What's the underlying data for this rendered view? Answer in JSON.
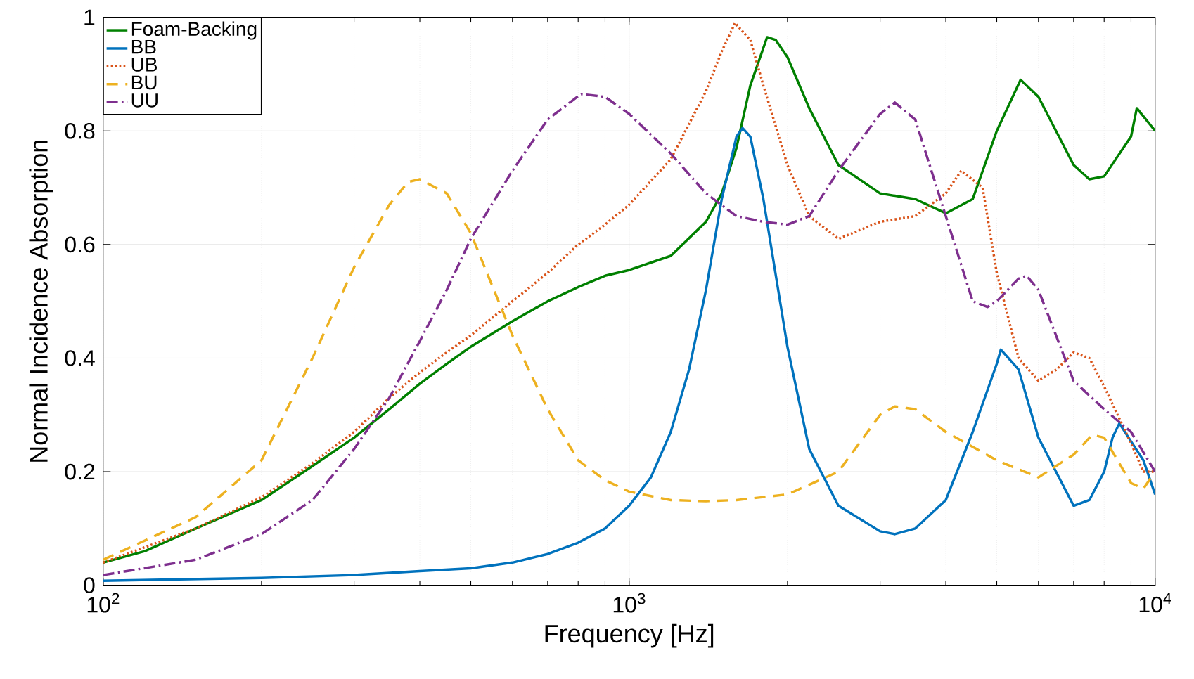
{
  "chart_data": {
    "type": "line",
    "xlabel": "Frequency [Hz]",
    "ylabel": "Normal Incidence Absorption",
    "log": "x",
    "grid": true,
    "legend": "top left",
    "xlim": [
      100,
      10000
    ],
    "ylim": [
      0,
      1
    ],
    "xticks": [
      {
        "value": 100,
        "label": "10$^{2}$"
      },
      {
        "value": 1000,
        "label": "10$^{3}$"
      },
      {
        "value": 10000,
        "label": "10$^{4}$"
      }
    ],
    "yticks": [
      0,
      0.2,
      0.4,
      0.6,
      0.8,
      1
    ],
    "series": [
      {
        "name": "Foam-Backing",
        "color": "#008000",
        "line_style": "solid",
        "x": [
          100,
          120,
          150,
          200,
          250,
          300,
          350,
          400,
          450,
          500,
          600,
          700,
          800,
          900,
          1000,
          1200,
          1400,
          1500,
          1600,
          1700,
          1830,
          1900,
          2000,
          2200,
          2500,
          3000,
          3500,
          4000,
          4500,
          5000,
          5550,
          6000,
          7000,
          7500,
          8000,
          9000,
          9230,
          10000
        ],
        "values": [
          0.04,
          0.06,
          0.1,
          0.15,
          0.21,
          0.26,
          0.31,
          0.355,
          0.39,
          0.42,
          0.465,
          0.5,
          0.525,
          0.545,
          0.555,
          0.58,
          0.64,
          0.69,
          0.77,
          0.88,
          0.965,
          0.96,
          0.93,
          0.84,
          0.74,
          0.69,
          0.68,
          0.655,
          0.68,
          0.8,
          0.89,
          0.86,
          0.74,
          0.715,
          0.72,
          0.79,
          0.84,
          0.8
        ]
      },
      {
        "name": "BB",
        "color": "#0072bd",
        "line_style": "solid",
        "x": [
          100,
          200,
          300,
          400,
          500,
          600,
          700,
          800,
          900,
          1000,
          1100,
          1200,
          1300,
          1400,
          1500,
          1600,
          1643,
          1700,
          1800,
          2000,
          2200,
          2500,
          3000,
          3200,
          3500,
          4000,
          4500,
          5000,
          5090,
          5500,
          6000,
          7000,
          7500,
          8000,
          8300,
          8550,
          9500,
          10000
        ],
        "values": [
          0.008,
          0.013,
          0.018,
          0.025,
          0.03,
          0.04,
          0.055,
          0.075,
          0.1,
          0.14,
          0.19,
          0.27,
          0.38,
          0.52,
          0.68,
          0.79,
          0.805,
          0.79,
          0.68,
          0.42,
          0.24,
          0.14,
          0.095,
          0.09,
          0.1,
          0.15,
          0.27,
          0.39,
          0.415,
          0.38,
          0.26,
          0.14,
          0.15,
          0.2,
          0.26,
          0.285,
          0.22,
          0.16
        ]
      },
      {
        "name": "UB",
        "color": "#d95319",
        "line_style": "dotted",
        "x": [
          100,
          150,
          200,
          250,
          300,
          350,
          400,
          450,
          500,
          600,
          700,
          800,
          900,
          1000,
          1200,
          1400,
          1500,
          1590,
          1700,
          1800,
          2000,
          2200,
          2500,
          3000,
          3500,
          4000,
          4280,
          4700,
          5000,
          5500,
          6000,
          6500,
          7000,
          7500,
          8000,
          9000,
          9500,
          10000
        ],
        "values": [
          0.04,
          0.1,
          0.155,
          0.215,
          0.27,
          0.33,
          0.375,
          0.41,
          0.44,
          0.5,
          0.55,
          0.6,
          0.635,
          0.67,
          0.75,
          0.87,
          0.94,
          0.99,
          0.96,
          0.88,
          0.74,
          0.65,
          0.61,
          0.64,
          0.65,
          0.69,
          0.73,
          0.7,
          0.55,
          0.4,
          0.36,
          0.38,
          0.41,
          0.4,
          0.35,
          0.25,
          0.2,
          0.2
        ]
      },
      {
        "name": "BU",
        "color": "#edb120",
        "line_style": "dashed",
        "x": [
          100,
          150,
          200,
          250,
          300,
          350,
          380,
          400,
          450,
          500,
          600,
          700,
          800,
          900,
          1000,
          1200,
          1400,
          1600,
          2000,
          2500,
          3000,
          3200,
          3500,
          4000,
          5000,
          6000,
          7000,
          7600,
          8000,
          9000,
          9500,
          10000
        ],
        "values": [
          0.045,
          0.12,
          0.22,
          0.4,
          0.56,
          0.67,
          0.71,
          0.715,
          0.69,
          0.62,
          0.44,
          0.31,
          0.22,
          0.185,
          0.165,
          0.15,
          0.148,
          0.15,
          0.16,
          0.2,
          0.3,
          0.315,
          0.31,
          0.27,
          0.22,
          0.19,
          0.23,
          0.265,
          0.26,
          0.18,
          0.17,
          0.2
        ]
      },
      {
        "name": "UU",
        "color": "#7e2f8e",
        "line_style": "dashdot",
        "x": [
          100,
          150,
          200,
          250,
          300,
          350,
          400,
          450,
          500,
          600,
          700,
          810,
          900,
          1000,
          1200,
          1400,
          1600,
          1800,
          2000,
          2200,
          2500,
          3000,
          3200,
          3500,
          4000,
          4500,
          4800,
          5000,
          5500,
          5700,
          6000,
          7000,
          8000,
          9000,
          10000
        ],
        "values": [
          0.018,
          0.045,
          0.09,
          0.15,
          0.24,
          0.33,
          0.43,
          0.52,
          0.61,
          0.73,
          0.82,
          0.865,
          0.86,
          0.83,
          0.76,
          0.69,
          0.65,
          0.64,
          0.635,
          0.65,
          0.73,
          0.83,
          0.85,
          0.82,
          0.65,
          0.5,
          0.49,
          0.5,
          0.54,
          0.545,
          0.52,
          0.36,
          0.31,
          0.27,
          0.2
        ]
      }
    ]
  }
}
